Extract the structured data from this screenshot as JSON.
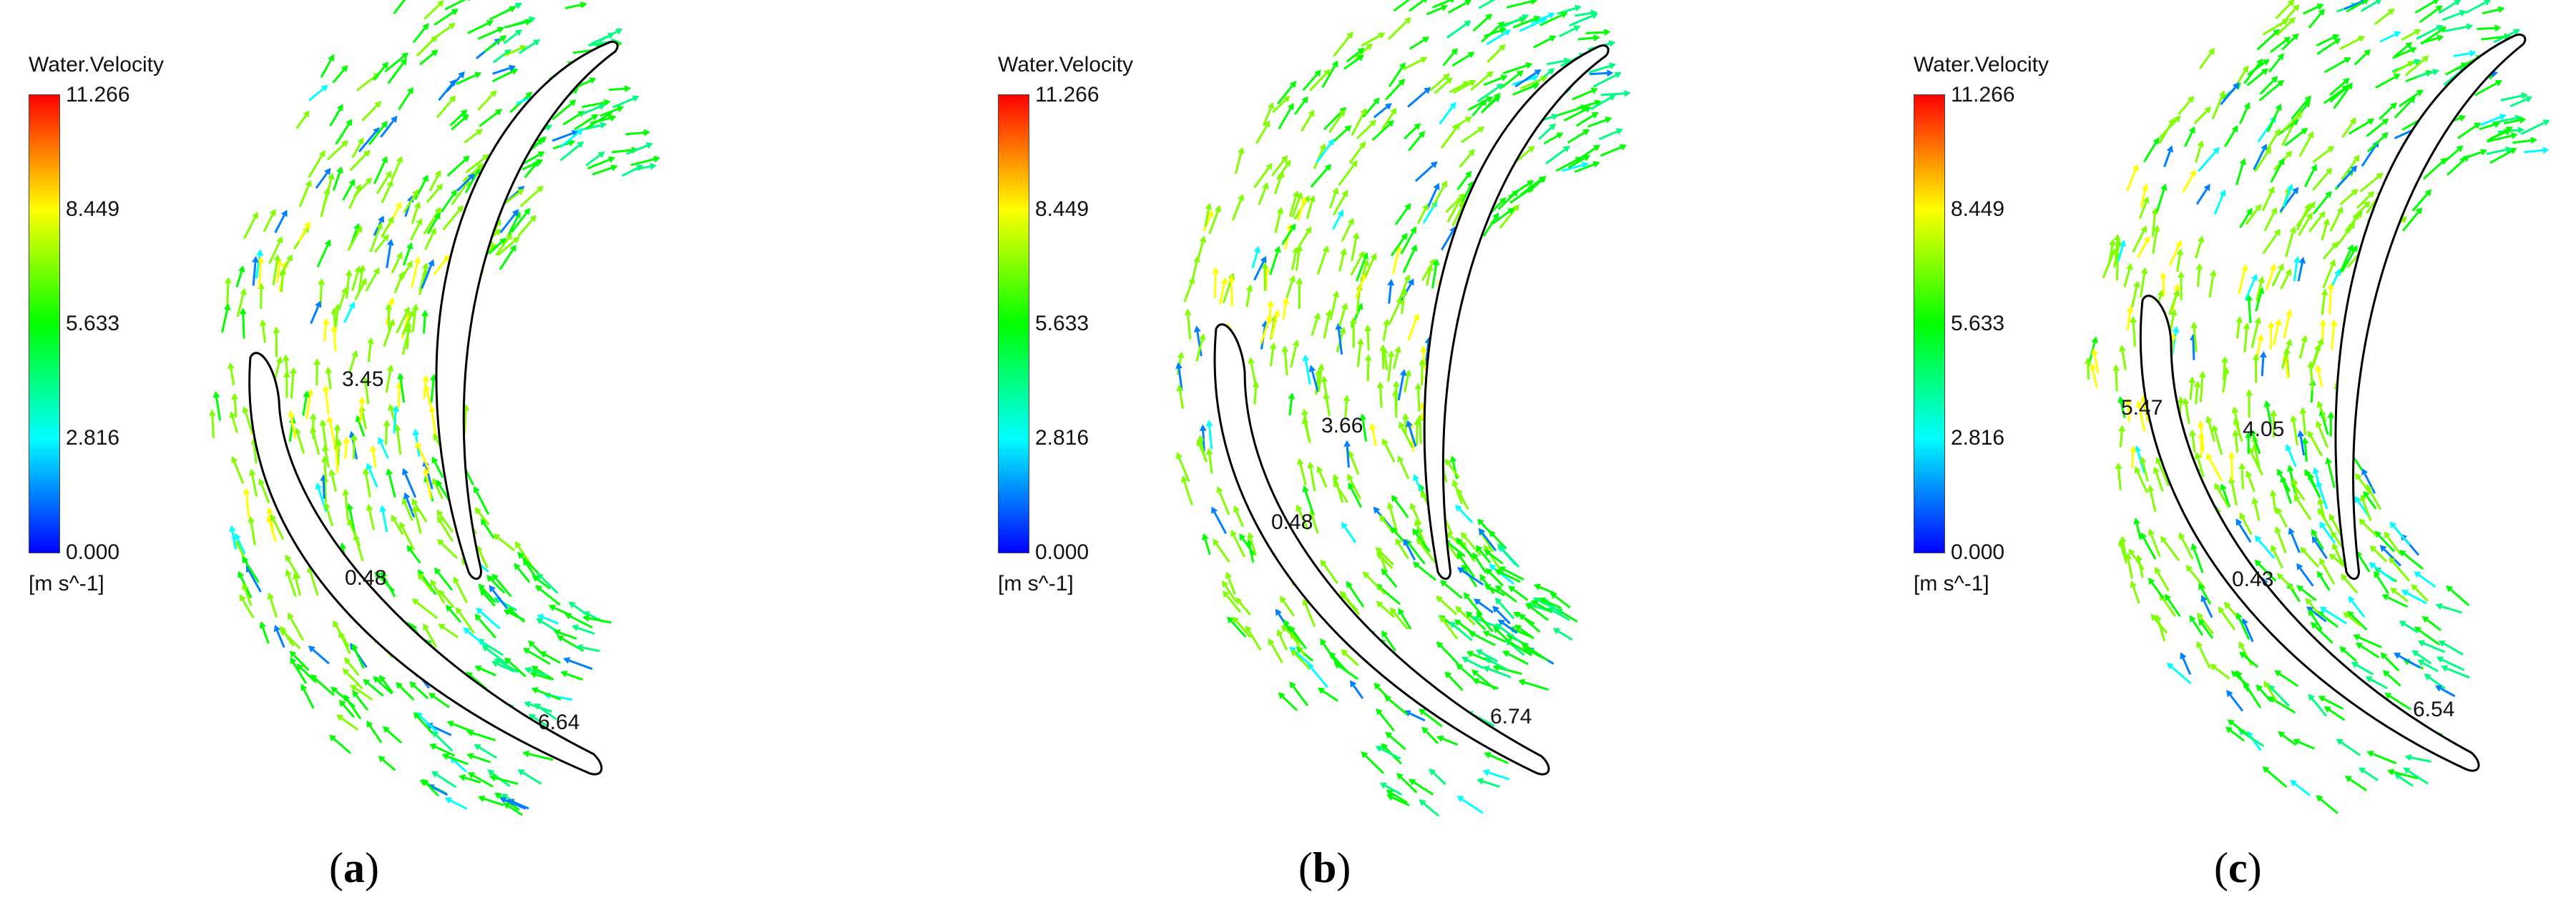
{
  "figure": {
    "panels": [
      {
        "id": "a",
        "caption_open": "(",
        "caption_letter": "a",
        "caption_close": ")",
        "legend": {
          "title": "Water.Velocity",
          "ticks": [
            "11.266",
            "8.449",
            "5.633",
            "2.816",
            "0.000"
          ],
          "unit": "[m s^-1]"
        },
        "annotations": [
          "3.45",
          "0.48",
          "6.64"
        ]
      },
      {
        "id": "b",
        "caption_open": "(",
        "caption_letter": "b",
        "caption_close": ")",
        "legend": {
          "title": "Water.Velocity",
          "ticks": [
            "11.266",
            "8.449",
            "5.633",
            "2.816",
            "0.000"
          ],
          "unit": "[m s^-1]"
        },
        "annotations": [
          "3.66",
          "0.48",
          "6.74"
        ]
      },
      {
        "id": "c",
        "caption_open": "(",
        "caption_letter": "c",
        "caption_close": ")",
        "legend": {
          "title": "Water.Velocity",
          "ticks": [
            "11.266",
            "8.449",
            "5.633",
            "2.816",
            "0.000"
          ],
          "unit": "[m s^-1]"
        },
        "annotations": [
          "5.47",
          "4.05",
          "0.43",
          "6.54"
        ]
      }
    ],
    "colorscale": {
      "min": 0.0,
      "max": 11.266,
      "colors": [
        "#0000ff",
        "#007fff",
        "#00ffff",
        "#00ff80",
        "#00ff00",
        "#80ff00",
        "#ffff00",
        "#ff7f00",
        "#ff0000"
      ]
    }
  }
}
